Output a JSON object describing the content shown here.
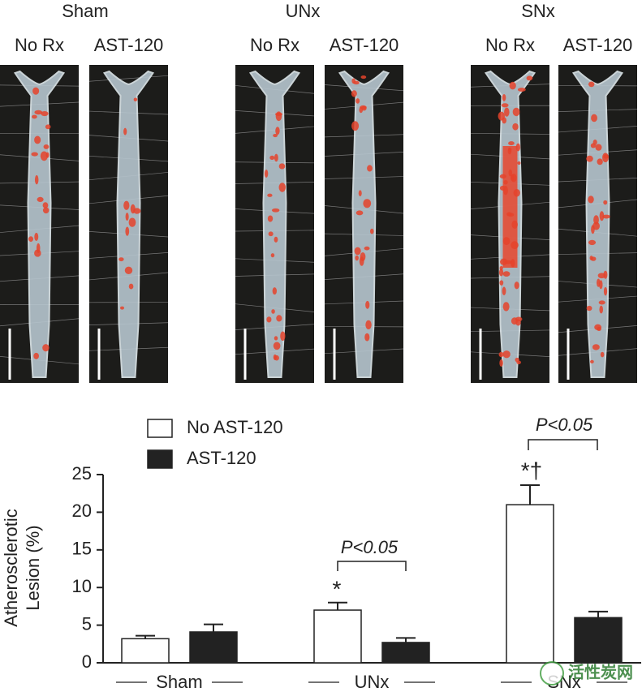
{
  "panels": [
    {
      "group": "Sham",
      "conditions": [
        "No Rx",
        "AST-120"
      ]
    },
    {
      "group": "UNx",
      "conditions": [
        "No Rx",
        "AST-120"
      ]
    },
    {
      "group": "SNx",
      "conditions": [
        "No Rx",
        "AST-120"
      ]
    }
  ],
  "chart_data": {
    "type": "bar",
    "y_label": [
      "Atherosclerotic",
      "Lesion (%)"
    ],
    "categories": [
      "Sham",
      "UNx",
      "SNx"
    ],
    "series": [
      {
        "name": "No AST-120",
        "color": "#ffffff",
        "values": [
          3.2,
          7.0,
          21.0
        ],
        "errors": [
          0.4,
          1.0,
          2.6
        ]
      },
      {
        "name": "AST-120",
        "color": "#222222",
        "values": [
          4.1,
          2.7,
          6.0
        ],
        "errors": [
          1.0,
          0.6,
          0.8
        ]
      }
    ],
    "ylim": [
      0,
      25
    ],
    "yticks": [
      0,
      5,
      10,
      15,
      20,
      25
    ],
    "annotations": [
      "*",
      "*†",
      "P<0.05",
      "P<0.05"
    ]
  },
  "watermark": "活性炭网"
}
